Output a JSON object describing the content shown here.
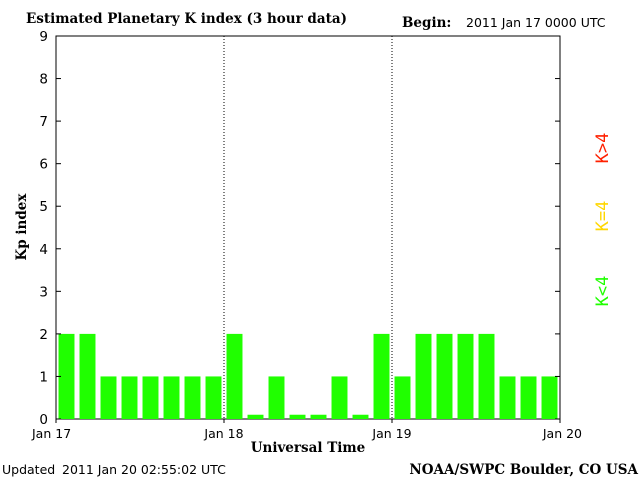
{
  "header": {
    "title": "Estimated Planetary K index (3 hour data)",
    "begin_label": "Begin:",
    "begin_value": "2011 Jan 17 0000 UTC"
  },
  "footer": {
    "updated_label": "Updated",
    "updated_value": "2011 Jan 20 02:55:02 UTC",
    "source": "NOAA/SWPC Boulder, CO USA"
  },
  "legend": [
    {
      "label": "K>4",
      "color": "#ff2000"
    },
    {
      "label": "K=4",
      "color": "#ffd700"
    },
    {
      "label": "K<4",
      "color": "#20ff00"
    }
  ],
  "colors": {
    "bar_below_4": "#20ff00",
    "bar_equal_4": "#ffd700",
    "bar_above_4": "#ff2000",
    "axis": "#000000",
    "day_divider": "#000000"
  },
  "chart_data": {
    "type": "bar",
    "title": "Estimated Planetary K index (3 hour data)",
    "xlabel": "Universal Time",
    "ylabel": "Kp index",
    "ylim": [
      0,
      9
    ],
    "yticks": [
      0,
      1,
      2,
      3,
      4,
      5,
      6,
      7,
      8,
      9
    ],
    "xticks": [
      "Jan 17",
      "Jan 18",
      "Jan 19",
      "Jan 20"
    ],
    "bars_per_day": 8,
    "grid": false,
    "day_dividers": "dotted",
    "series": [
      {
        "values": [
          2,
          2,
          1,
          1,
          1,
          1,
          1,
          1,
          2,
          0.1,
          1,
          0.1,
          0.1,
          1,
          0.1,
          2,
          1,
          2,
          2,
          2,
          2,
          1,
          1,
          1
        ]
      }
    ]
  }
}
